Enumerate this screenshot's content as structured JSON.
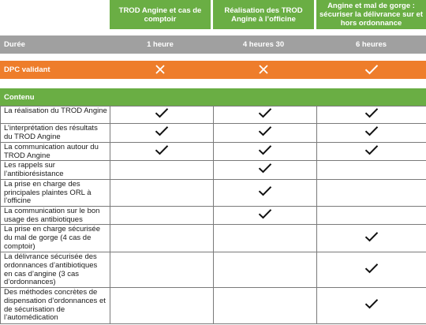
{
  "columns": [
    "TROD Angine et cas de comptoir",
    "Réalisation des TROD Angine à l’officine",
    "Angine et mal de gorge : sécuriser la délivrance sur et hors ordonnance"
  ],
  "duree": {
    "label": "Durée",
    "values": [
      "1 heure",
      "4 heures 30",
      "6 heures"
    ]
  },
  "dpc": {
    "label": "DPC validant",
    "values": [
      false,
      false,
      true
    ]
  },
  "contenu": {
    "label": "Contenu",
    "rows": [
      {
        "text": "La réalisation du TROD Angine",
        "checks": [
          true,
          true,
          true
        ]
      },
      {
        "text": "L’interprétation des résultats du TROD Angine",
        "checks": [
          true,
          true,
          true
        ]
      },
      {
        "text": "La communication autour du TROD Angine",
        "checks": [
          true,
          true,
          true
        ]
      },
      {
        "text": "Les rappels sur l’antibiorésistance",
        "checks": [
          false,
          true,
          false
        ]
      },
      {
        "text": "La prise en charge des principales plaintes ORL à l’officine",
        "checks": [
          false,
          true,
          false
        ]
      },
      {
        "text": "La communication sur le bon usage des antibiotiques",
        "checks": [
          false,
          true,
          false
        ]
      },
      {
        "text": "La prise en charge sécurisée du mal de gorge (4 cas de comptoir)",
        "checks": [
          false,
          false,
          true
        ]
      },
      {
        "text": "La délivrance sécurisée des ordonnances d’antibiotiques en cas d’angine (3 cas d’ordonnances)",
        "checks": [
          false,
          false,
          true
        ]
      },
      {
        "text": "Des méthodes concrètes de dispensation d’ordonnances et de sécurisation de l’automédication",
        "checks": [
          false,
          false,
          true
        ]
      }
    ]
  },
  "colors": {
    "green": "#6aae44",
    "grey": "#a0a0a0",
    "orange": "#ee7d2b",
    "header_green": "#6aae44"
  },
  "icons": {
    "check": "check-icon",
    "cross": "cross-icon"
  }
}
